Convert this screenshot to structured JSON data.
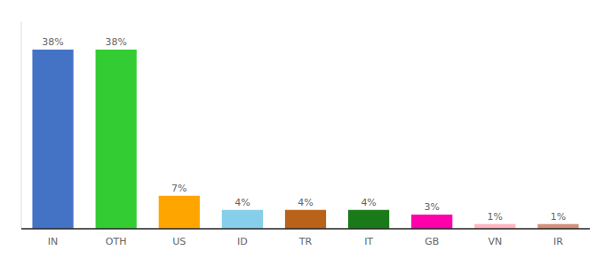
{
  "chart_data": {
    "type": "bar",
    "categories": [
      "IN",
      "OTH",
      "US",
      "ID",
      "TR",
      "IT",
      "GB",
      "VN",
      "IR"
    ],
    "values": [
      38,
      38,
      7,
      4,
      4,
      4,
      3,
      1,
      1
    ],
    "value_labels": [
      "38%",
      "38%",
      "7%",
      "4%",
      "4%",
      "4%",
      "3%",
      "1%",
      "1%"
    ],
    "colors": [
      "#4472C4",
      "#33CC33",
      "#FFA500",
      "#87CEEB",
      "#B8621A",
      "#1A7A1A",
      "#FF00AA",
      "#FFB6C1",
      "#D4907A"
    ],
    "ylim": [
      0,
      44
    ],
    "data_labels": true,
    "tick_labels": "x",
    "grid": false
  }
}
